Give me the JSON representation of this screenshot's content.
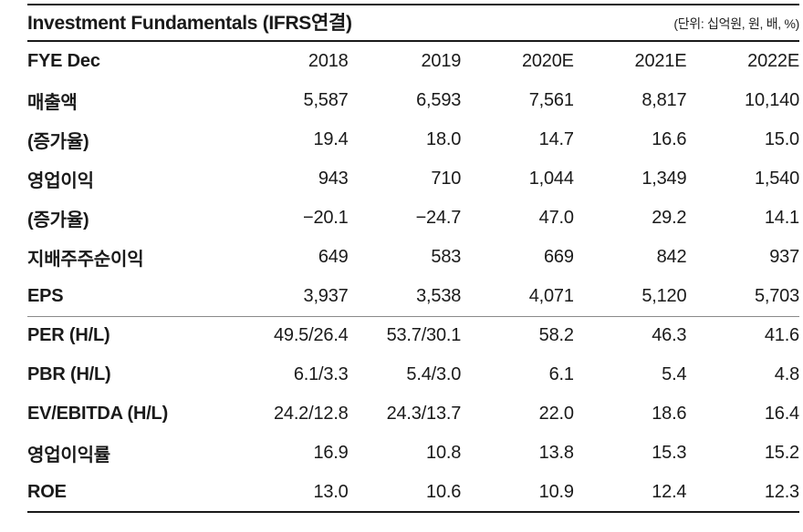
{
  "page": {
    "background": "#ffffff",
    "text_color": "#1a1a1a",
    "rule_color": "#1a1a1a"
  },
  "table": {
    "title": "Investment Fundamentals (IFRS연결)",
    "unit_note": "(단위: 십억원, 원, 배, %)",
    "header": [
      "FYE Dec",
      "2018",
      "2019",
      "2020E",
      "2021E",
      "2022E"
    ],
    "rows": [
      {
        "label": "매출액",
        "values": [
          "5,587",
          "6,593",
          "7,561",
          "8,817",
          "10,140"
        ]
      },
      {
        "label": "(증가율)",
        "values": [
          "19.4",
          "18.0",
          "14.7",
          "16.6",
          "15.0"
        ]
      },
      {
        "label": "영업이익",
        "values": [
          "943",
          "710",
          "1,044",
          "1,349",
          "1,540"
        ]
      },
      {
        "label": "(증가율)",
        "values": [
          "−20.1",
          "−24.7",
          "47.0",
          "29.2",
          "14.1"
        ]
      },
      {
        "label": "지배주주순이익",
        "values": [
          "649",
          "583",
          "669",
          "842",
          "937"
        ]
      },
      {
        "label": "EPS",
        "values": [
          "3,937",
          "3,538",
          "4,071",
          "5,120",
          "5,703"
        ]
      },
      {
        "label": "PER (H/L)",
        "values": [
          "49.5/26.4",
          "53.7/30.1",
          "58.2",
          "46.3",
          "41.6"
        ],
        "section_start": true
      },
      {
        "label": "PBR (H/L)",
        "values": [
          "6.1/3.3",
          "5.4/3.0",
          "6.1",
          "5.4",
          "4.8"
        ]
      },
      {
        "label": "EV/EBITDA (H/L)",
        "values": [
          "24.2/12.8",
          "24.3/13.7",
          "22.0",
          "18.6",
          "16.4"
        ]
      },
      {
        "label": "영업이익률",
        "values": [
          "16.9",
          "10.8",
          "13.8",
          "15.3",
          "15.2"
        ]
      },
      {
        "label": "ROE",
        "values": [
          "13.0",
          "10.6",
          "10.9",
          "12.4",
          "12.3"
        ]
      }
    ]
  }
}
